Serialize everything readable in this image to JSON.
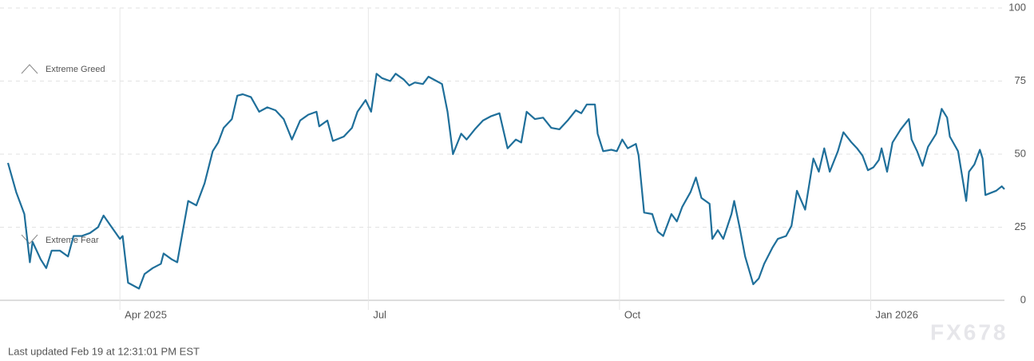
{
  "chart_data": {
    "type": "line",
    "annotations": [
      "Extreme Greed",
      "Extreme Fear"
    ],
    "footnote": "Last updated Feb 19 at 12:31:01 PM EST",
    "watermark": "FX678",
    "color": "#1f6f9a",
    "x": [
      0,
      3,
      6,
      8,
      9,
      12,
      14,
      16,
      19,
      22,
      24,
      27,
      30,
      33,
      35,
      38,
      41,
      42,
      44,
      48,
      50,
      53,
      56,
      57,
      60,
      62,
      64,
      66,
      69,
      72,
      75,
      77,
      79,
      82,
      84,
      86,
      89,
      92,
      95,
      98,
      101,
      104,
      107,
      110,
      113,
      114,
      117,
      119,
      123,
      126,
      128,
      131,
      133,
      135,
      137,
      140,
      142,
      145,
      147,
      149,
      152,
      154,
      157,
      159,
      161,
      163,
      166,
      168,
      171,
      174,
      177,
      180,
      183,
      186,
      188,
      190,
      193,
      196,
      199,
      202,
      205,
      208,
      210,
      212,
      215,
      216,
      218,
      221,
      223,
      225,
      227,
      230,
      231,
      233,
      236,
      238,
      240,
      243,
      245,
      247,
      250,
      252,
      254,
      257,
      258,
      260,
      262,
      265,
      266,
      268,
      270,
      273,
      275,
      277,
      280,
      282,
      285,
      287,
      289,
      292,
      295,
      297,
      299,
      301,
      304,
      306,
      309,
      311,
      313,
      315,
      317,
      319,
      320,
      322,
      324,
      327,
      330,
      331,
      333,
      335,
      337,
      340,
      342,
      344,
      345,
      348,
      351,
      352,
      354,
      356,
      357,
      358,
      362,
      364,
      365
    ],
    "values": [
      47,
      37,
      29.5,
      13,
      20,
      14,
      11,
      17,
      17,
      15,
      22,
      22,
      23,
      25,
      29,
      25,
      21,
      22,
      6,
      4,
      9,
      11,
      12.5,
      16,
      14,
      13,
      23.5,
      34,
      32.5,
      40,
      51,
      54,
      59,
      62,
      70,
      70.5,
      69.5,
      64.5,
      66,
      65,
      62,
      55,
      61.5,
      63.5,
      64.5,
      59.5,
      61.5,
      54.5,
      56,
      59,
      64.5,
      68.5,
      64.5,
      77.5,
      76,
      75,
      77.5,
      75.5,
      73.5,
      74.5,
      74,
      76.5,
      75,
      74,
      64.5,
      50,
      57,
      55,
      58.5,
      61.5,
      63,
      64,
      52,
      55,
      54,
      64.5,
      62,
      62.5,
      59,
      58.5,
      61.5,
      65,
      64,
      67,
      67,
      57,
      51,
      51.5,
      51,
      55,
      52,
      53.5,
      49.5,
      30,
      29.5,
      23.5,
      22,
      29.5,
      27,
      32,
      37,
      42,
      35,
      33,
      21,
      24,
      21,
      29.5,
      34,
      25,
      15,
      5.5,
      7.5,
      12.5,
      18,
      21,
      22,
      25.5,
      37.5,
      31,
      48.5,
      44,
      52,
      44,
      51,
      57.5,
      54,
      52,
      49.5,
      44.5,
      45.5,
      48,
      52,
      44,
      54,
      58.5,
      62,
      55,
      51,
      46,
      52.5,
      57,
      65.5,
      62.5,
      56,
      51,
      34,
      44,
      46.5,
      51.5,
      48.5,
      36,
      37.5,
      39,
      38
    ],
    "xlim": [
      0,
      365
    ],
    "xticks": [
      {
        "value": 41,
        "label": "Apr 2025"
      },
      {
        "value": 132,
        "label": "Jul"
      },
      {
        "value": 224,
        "label": "Oct"
      },
      {
        "value": 316,
        "label": "Jan 2026"
      }
    ],
    "ylim": [
      0,
      100
    ],
    "yticks": [
      0,
      25,
      50,
      75,
      100
    ],
    "grid": true
  }
}
